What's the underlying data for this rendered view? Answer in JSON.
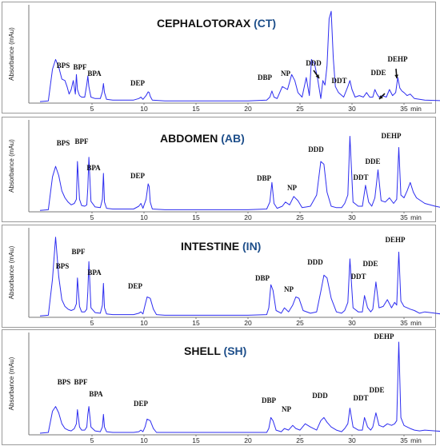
{
  "chart_data": [
    {
      "type": "line",
      "title_main": "CEPHALOTORAX",
      "title_code": "(CT)",
      "ylabel": "Absorbance (mAu)",
      "x_ticks": [
        "5",
        "10",
        "15",
        "20",
        "25",
        "30",
        "35"
      ],
      "x_unit": "min",
      "xlim": [
        0,
        40
      ],
      "ylim": [
        0,
        120
      ],
      "series": [
        {
          "x": [
            0,
            0.8,
            1.2,
            1.5,
            1.8,
            2.1,
            2.4,
            2.6,
            2.8,
            3.0,
            3.2,
            3.4,
            3.5,
            3.6,
            3.8,
            4.0,
            4.3,
            4.5,
            4.6,
            4.7,
            4.9,
            5.3,
            5.8,
            6.0,
            6.1,
            6.2,
            6.4,
            7,
            9,
            9.5,
            9.7,
            9.9,
            10.2,
            10.4,
            10.5,
            10.6,
            10.8,
            12,
            15,
            20,
            21.8,
            22.1,
            22.3,
            22.5,
            22.8,
            23.3,
            23.8,
            24.2,
            24.5,
            24.8,
            25.2,
            25.6,
            25.9,
            26.1,
            26.4,
            26.7,
            27.0,
            27.2,
            27.4,
            27.6,
            27.8,
            28.0,
            28.2,
            28.4,
            28.7,
            29.2,
            29.6,
            29.8,
            30.0,
            30.3,
            30.7,
            31.1,
            31.4,
            31.7,
            32.0,
            32.2,
            32.4,
            32.6,
            32.9,
            33.3,
            33.6,
            33.9,
            34.2,
            34.4,
            34.6,
            34.8,
            35.0,
            35.3,
            35.6,
            36,
            37,
            39,
            40
          ],
          "y": [
            2,
            3,
            45,
            58,
            48,
            32,
            30,
            22,
            12,
            18,
            30,
            12,
            38,
            18,
            10,
            8,
            8,
            25,
            36,
            22,
            8,
            6,
            6,
            15,
            26,
            14,
            5,
            4,
            4,
            6,
            8,
            5,
            10,
            15,
            14,
            9,
            4,
            3,
            3,
            3,
            4,
            8,
            16,
            8,
            6,
            22,
            18,
            38,
            30,
            14,
            8,
            34,
            10,
            58,
            52,
            32,
            6,
            30,
            24,
            50,
            112,
            122,
            60,
            22,
            14,
            8,
            22,
            30,
            18,
            8,
            10,
            8,
            14,
            8,
            8,
            18,
            12,
            8,
            10,
            8,
            18,
            10,
            14,
            34,
            20,
            16,
            14,
            10,
            12,
            6,
            4,
            3,
            3
          ]
        }
      ],
      "peaks": [
        "BPS",
        "BPF",
        "BPA",
        "DEP",
        "DBP",
        "NP",
        "DDD",
        "DDT",
        "DDE",
        "DEHP"
      ]
    },
    {
      "type": "line",
      "title_main": "ABDOMEN",
      "title_code": "(AB)",
      "ylabel": "Absorbance (mAu)",
      "x_ticks": [
        "5",
        "10",
        "15",
        "20",
        "25",
        "30",
        "35"
      ],
      "x_unit": "min",
      "xlim": [
        0,
        40
      ],
      "ylim": [
        0,
        120
      ],
      "series": [
        {
          "x": [
            0,
            0.8,
            1.2,
            1.5,
            1.8,
            2.1,
            2.4,
            2.7,
            3.0,
            3.3,
            3.5,
            3.6,
            3.8,
            4.0,
            4.3,
            4.5,
            4.6,
            4.7,
            4.9,
            5.3,
            5.8,
            6.0,
            6.1,
            6.2,
            6.4,
            7,
            9,
            9.5,
            9.7,
            9.9,
            10.2,
            10.4,
            10.5,
            10.6,
            10.8,
            12,
            15,
            20,
            21.8,
            22.1,
            22.3,
            22.5,
            22.8,
            23.3,
            23.6,
            24.0,
            24.4,
            24.8,
            25.2,
            26,
            26.6,
            27.0,
            27.3,
            27.6,
            28.0,
            28.5,
            29.0,
            29.3,
            29.6,
            29.8,
            30.1,
            30.6,
            31.0,
            31.3,
            31.6,
            31.9,
            32.2,
            32.5,
            32.8,
            33.2,
            33.6,
            34.0,
            34.3,
            34.5,
            34.7,
            35.0,
            35.3,
            35.6,
            35.9,
            36.2,
            36.6,
            37,
            38,
            39,
            40
          ],
          "y": [
            2,
            3,
            50,
            65,
            52,
            30,
            20,
            14,
            10,
            12,
            18,
            72,
            18,
            9,
            8,
            10,
            35,
            78,
            15,
            7,
            6,
            18,
            55,
            14,
            5,
            4,
            4,
            8,
            12,
            5,
            18,
            40,
            36,
            14,
            4,
            3,
            3,
            3,
            4,
            14,
            42,
            12,
            5,
            8,
            14,
            10,
            22,
            16,
            6,
            8,
            24,
            72,
            68,
            28,
            8,
            6,
            6,
            12,
            24,
            108,
            14,
            8,
            8,
            38,
            14,
            8,
            20,
            60,
            16,
            14,
            20,
            12,
            18,
            92,
            24,
            20,
            30,
            42,
            28,
            20,
            16,
            12,
            8,
            5,
            4
          ]
        }
      ],
      "peaks": [
        "BPS",
        "BPF",
        "BPA",
        "DEP",
        "DBP",
        "NP",
        "DDD",
        "DDT",
        "DDE",
        "DEHP"
      ]
    },
    {
      "type": "line",
      "title_main": "INTESTINE",
      "title_code": "(IN)",
      "ylabel": "Absorbance (mAu)",
      "x_ticks": [
        "5",
        "10",
        "15",
        "20",
        "25",
        "30",
        "35"
      ],
      "x_unit": "min",
      "xlim": [
        0,
        40
      ],
      "ylim": [
        0,
        120
      ],
      "series": [
        {
          "x": [
            0,
            0.8,
            1.2,
            1.5,
            1.8,
            2.1,
            2.4,
            2.7,
            3.0,
            3.3,
            3.5,
            3.6,
            3.8,
            4.0,
            4.3,
            4.5,
            4.6,
            4.7,
            4.9,
            5.3,
            5.8,
            6.0,
            6.1,
            6.2,
            6.4,
            7,
            9,
            9.5,
            9.7,
            9.9,
            10.1,
            10.3,
            10.6,
            10.9,
            11.2,
            12,
            15,
            20,
            21.8,
            22.0,
            22.2,
            22.4,
            22.7,
            23.2,
            23.5,
            23.9,
            24.3,
            24.6,
            24.9,
            25.3,
            26,
            26.6,
            27.0,
            27.3,
            27.6,
            28.0,
            28.5,
            29.0,
            29.3,
            29.6,
            29.8,
            30.1,
            30.6,
            31.0,
            31.2,
            31.5,
            31.8,
            32.0,
            32.3,
            32.6,
            33.0,
            33.4,
            33.8,
            34.1,
            34.3,
            34.5,
            34.7,
            35.0,
            35.3,
            35.6,
            36,
            36.5,
            37,
            38,
            39,
            40
          ],
          "y": [
            2,
            3,
            56,
            118,
            60,
            26,
            16,
            12,
            10,
            12,
            20,
            58,
            16,
            8,
            8,
            12,
            38,
            82,
            14,
            7,
            6,
            18,
            50,
            14,
            5,
            4,
            4,
            6,
            8,
            5,
            18,
            30,
            28,
            12,
            4,
            3,
            3,
            3,
            4,
            14,
            48,
            40,
            10,
            6,
            14,
            8,
            18,
            30,
            28,
            10,
            6,
            8,
            38,
            62,
            58,
            28,
            8,
            6,
            10,
            22,
            86,
            14,
            8,
            8,
            32,
            14,
            8,
            12,
            52,
            14,
            16,
            26,
            14,
            22,
            18,
            96,
            24,
            16,
            14,
            12,
            10,
            6,
            8,
            6,
            4,
            3
          ]
        }
      ],
      "peaks": [
        "BPS",
        "BPF",
        "BPA",
        "DEP",
        "DBP",
        "NP",
        "DDD",
        "DDT",
        "DDE",
        "DEHP"
      ]
    },
    {
      "type": "line",
      "title_main": "SHELL",
      "title_code": "(SH)",
      "ylabel": "Absorbance (mAu)",
      "x_ticks": [
        "5",
        "10",
        "15",
        "20",
        "25",
        "30",
        "35"
      ],
      "x_unit": "min",
      "xlim": [
        0,
        40
      ],
      "ylim": [
        0,
        120
      ],
      "series": [
        {
          "x": [
            0,
            0.8,
            1.2,
            1.5,
            1.8,
            2.1,
            2.4,
            2.7,
            3.0,
            3.3,
            3.5,
            3.6,
            3.8,
            4.0,
            4.3,
            4.5,
            4.6,
            4.7,
            4.9,
            5.3,
            5.8,
            6.0,
            6.1,
            6.2,
            6.4,
            7,
            9,
            9.5,
            9.7,
            9.9,
            10.1,
            10.3,
            10.6,
            10.9,
            11.2,
            12,
            15,
            20,
            21.8,
            22.0,
            22.2,
            22.4,
            22.7,
            23.2,
            23.5,
            23.9,
            24.3,
            24.6,
            25.0,
            25.5,
            26.0,
            26.6,
            27.0,
            27.3,
            27.6,
            28.0,
            28.5,
            29.0,
            29.3,
            29.6,
            29.8,
            30.1,
            30.6,
            31.0,
            31.2,
            31.5,
            31.8,
            32.0,
            32.3,
            32.6,
            33.0,
            33.4,
            33.8,
            34.1,
            34.3,
            34.5,
            34.7,
            35.0,
            35.3,
            35.6,
            36,
            36.5,
            37,
            38,
            39,
            40
          ],
          "y": [
            2,
            3,
            30,
            36,
            28,
            14,
            8,
            6,
            5,
            8,
            14,
            32,
            10,
            6,
            6,
            10,
            26,
            36,
            10,
            5,
            4,
            10,
            26,
            10,
            4,
            3,
            3,
            4,
            6,
            4,
            10,
            20,
            18,
            8,
            3,
            3,
            3,
            3,
            3,
            8,
            22,
            18,
            6,
            4,
            8,
            6,
            12,
            8,
            6,
            14,
            10,
            6,
            18,
            22,
            16,
            10,
            6,
            4,
            8,
            14,
            34,
            10,
            6,
            6,
            22,
            10,
            6,
            10,
            28,
            12,
            10,
            14,
            12,
            14,
            18,
            118,
            22,
            12,
            10,
            8,
            6,
            5,
            6,
            5,
            4,
            3
          ]
        }
      ],
      "peaks": [
        "BPS",
        "BPF",
        "BPA",
        "DEP",
        "DBP",
        "NP",
        "DDD",
        "DDT",
        "DDE",
        "DEHP"
      ]
    }
  ],
  "colors": {
    "trace": "#2d2df0",
    "title_black": "#111111",
    "code_color": "#1d4e8a"
  }
}
